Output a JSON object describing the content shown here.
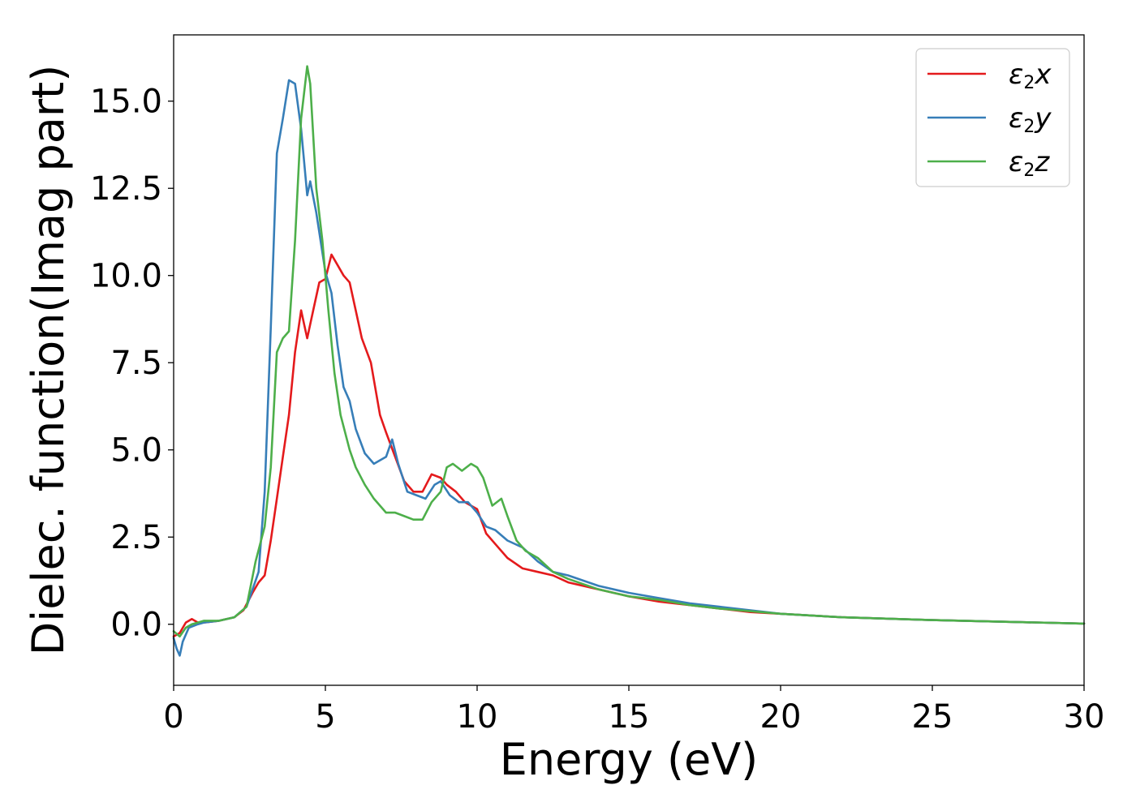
{
  "chart_data": {
    "type": "line",
    "xlabel": "Energy (eV)",
    "ylabel": "Dielec. function(Imag part)",
    "xlim": [
      0,
      30
    ],
    "ylim": [
      -1.75,
      16.9
    ],
    "xticks": [
      0,
      5,
      10,
      15,
      20,
      25,
      30
    ],
    "xtick_labels": [
      "0",
      "5",
      "10",
      "15",
      "20",
      "25",
      "30"
    ],
    "yticks": [
      0,
      2.5,
      5,
      7.5,
      10,
      12.5,
      15
    ],
    "ytick_labels": [
      "0.0",
      "2.5",
      "5.0",
      "7.5",
      "10.0",
      "12.5",
      "15.0"
    ],
    "grid": false,
    "legend_position": "top-right",
    "series": [
      {
        "name": "ε2x",
        "legend_main": "ε",
        "legend_sub": "2",
        "legend_tail": "x",
        "color": "#e41a1c",
        "x": [
          0,
          0.2,
          0.4,
          0.6,
          0.8,
          1.0,
          1.5,
          2.0,
          2.3,
          2.6,
          2.8,
          3.0,
          3.2,
          3.4,
          3.6,
          3.8,
          4.0,
          4.2,
          4.3,
          4.4,
          4.5,
          4.6,
          4.8,
          5.0,
          5.2,
          5.4,
          5.6,
          5.8,
          6.0,
          6.2,
          6.5,
          6.8,
          7.0,
          7.3,
          7.6,
          7.9,
          8.2,
          8.5,
          8.8,
          9.0,
          9.3,
          9.6,
          10.0,
          10.3,
          10.6,
          11.0,
          11.5,
          12.0,
          12.5,
          13.0,
          14.0,
          15.0,
          16.0,
          17.0,
          18.0,
          19.0,
          20.0,
          22.0,
          25.0,
          27.0,
          30.0
        ],
        "y": [
          -0.35,
          -0.25,
          0.05,
          0.15,
          0.05,
          0.05,
          0.1,
          0.2,
          0.4,
          0.9,
          1.2,
          1.4,
          2.4,
          3.6,
          4.8,
          6.0,
          7.8,
          9.0,
          8.6,
          8.2,
          8.6,
          9.0,
          9.8,
          9.9,
          10.6,
          10.3,
          10.0,
          9.8,
          9.0,
          8.2,
          7.5,
          6.0,
          5.5,
          4.8,
          4.1,
          3.8,
          3.8,
          4.3,
          4.2,
          4.0,
          3.8,
          3.5,
          3.3,
          2.6,
          2.3,
          1.9,
          1.6,
          1.5,
          1.4,
          1.2,
          1.0,
          0.8,
          0.65,
          0.55,
          0.45,
          0.35,
          0.3,
          0.2,
          0.12,
          0.08,
          0.02
        ]
      },
      {
        "name": "ε2y",
        "legend_main": "ε",
        "legend_sub": "2",
        "legend_tail": "y",
        "color": "#377eb8",
        "x": [
          0,
          0.1,
          0.2,
          0.3,
          0.5,
          0.8,
          1.0,
          1.5,
          2.0,
          2.4,
          2.8,
          3.0,
          3.2,
          3.4,
          3.6,
          3.8,
          4.0,
          4.2,
          4.4,
          4.5,
          4.7,
          5.0,
          5.2,
          5.4,
          5.6,
          5.8,
          6.0,
          6.3,
          6.6,
          7.0,
          7.2,
          7.4,
          7.7,
          8.0,
          8.3,
          8.6,
          8.8,
          9.1,
          9.4,
          9.7,
          10.0,
          10.3,
          10.6,
          11.0,
          11.5,
          12.0,
          12.5,
          13.0,
          14.0,
          15.0,
          16.0,
          17.0,
          18.0,
          20.0,
          22.0,
          25.0,
          30.0
        ],
        "y": [
          -0.4,
          -0.7,
          -0.9,
          -0.5,
          -0.1,
          0.0,
          0.05,
          0.1,
          0.2,
          0.5,
          1.5,
          3.8,
          8.5,
          13.5,
          14.5,
          15.6,
          15.5,
          14.2,
          12.3,
          12.7,
          11.8,
          10.1,
          9.5,
          8.0,
          6.8,
          6.4,
          5.6,
          4.9,
          4.6,
          4.8,
          5.3,
          4.6,
          3.8,
          3.7,
          3.6,
          4.0,
          4.1,
          3.7,
          3.5,
          3.5,
          3.2,
          2.8,
          2.7,
          2.4,
          2.2,
          1.8,
          1.5,
          1.4,
          1.1,
          0.9,
          0.75,
          0.6,
          0.5,
          0.3,
          0.2,
          0.12,
          0.02
        ]
      },
      {
        "name": "ε2z",
        "legend_main": "ε",
        "legend_sub": "2",
        "legend_tail": "z",
        "color": "#4daf4a",
        "x": [
          0,
          0.2,
          0.4,
          0.6,
          0.8,
          1.0,
          1.5,
          2.0,
          2.4,
          2.7,
          3.0,
          3.2,
          3.4,
          3.6,
          3.8,
          4.0,
          4.2,
          4.4,
          4.5,
          4.7,
          4.9,
          5.1,
          5.3,
          5.5,
          5.8,
          6.0,
          6.3,
          6.6,
          7.0,
          7.3,
          7.6,
          7.9,
          8.2,
          8.5,
          8.8,
          9.0,
          9.2,
          9.5,
          9.8,
          10.0,
          10.2,
          10.5,
          10.8,
          11.0,
          11.3,
          11.6,
          12.0,
          12.5,
          13.0,
          14.0,
          15.0,
          16.0,
          17.0,
          18.0,
          20.0,
          22.0,
          25.0,
          30.0
        ],
        "y": [
          -0.2,
          -0.35,
          -0.1,
          0.0,
          0.05,
          0.1,
          0.1,
          0.2,
          0.5,
          1.8,
          2.8,
          4.5,
          7.8,
          8.2,
          8.4,
          11.0,
          14.5,
          16.0,
          15.5,
          12.5,
          11.0,
          9.0,
          7.2,
          6.0,
          5.0,
          4.5,
          4.0,
          3.6,
          3.2,
          3.2,
          3.1,
          3.0,
          3.0,
          3.5,
          3.8,
          4.5,
          4.6,
          4.4,
          4.6,
          4.5,
          4.2,
          3.4,
          3.6,
          3.1,
          2.4,
          2.1,
          1.9,
          1.5,
          1.3,
          1.0,
          0.8,
          0.7,
          0.55,
          0.45,
          0.3,
          0.2,
          0.12,
          0.02
        ]
      }
    ]
  }
}
